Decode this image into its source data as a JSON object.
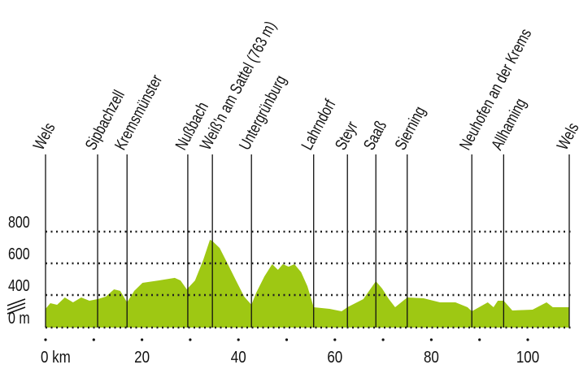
{
  "chart_data": {
    "type": "area",
    "x": [
      0,
      1.0,
      2.4,
      4.0,
      5.7,
      7.4,
      9.1,
      10.8,
      12.5,
      14.2,
      15.5,
      16.9,
      18.4,
      20.1,
      23.4,
      26.8,
      28.0,
      29.3,
      31.0,
      32.7,
      34.1,
      34.7,
      36.1,
      37.8,
      39.5,
      41.2,
      42.7,
      43.7,
      45.4,
      47.0,
      48.2,
      49.2,
      50.4,
      51.6,
      53.0,
      54.3,
      55.6,
      58.9,
      61.4,
      62.6,
      65.9,
      68.5,
      69.8,
      71.2,
      72.5,
      75.0,
      78.4,
      81.8,
      85.0,
      87.5,
      88.4,
      91.7,
      92.9,
      93.8,
      95.0,
      96.8,
      101.0,
      103.9,
      105.2,
      108.6
    ],
    "values": [
      230,
      300,
      280,
      370,
      310,
      370,
      330,
      350,
      380,
      436,
      426,
      310,
      426,
      477,
      492,
      508,
      492,
      436,
      492,
      621,
      749,
      738,
      697,
      595,
      492,
      380,
      280,
      415,
      518,
      595,
      559,
      595,
      579,
      595,
      544,
      456,
      250,
      230,
      200,
      250,
      350,
      487,
      441,
      350,
      250,
      370,
      360,
      310,
      310,
      250,
      200,
      310,
      250,
      330,
      330,
      210,
      220,
      310,
      250,
      250
    ],
    "color": "#9ec813",
    "places": {
      "names": [
        "Wels",
        "Sipbachzell",
        "Kremsmünster",
        "Nußbach",
        "Weiß'n am Sattel (763 m)",
        "Untergrünburg",
        "Lahrndorf",
        "Steyr",
        "Saaß",
        "Sierning",
        "Neuhofen an der Krems",
        "Allhaming",
        "Wels"
      ],
      "km": [
        0,
        10.8,
        16.9,
        29.5,
        34.6,
        42.7,
        55.6,
        62.6,
        68.5,
        75.0,
        88.4,
        95.0,
        108.6
      ]
    },
    "xlim": [
      0,
      108.6
    ],
    "xticks": [
      {
        "value": 0,
        "label": "0 km"
      },
      20,
      40,
      60,
      80,
      100
    ],
    "xminor_ticks": [
      10,
      30,
      50,
      70,
      90
    ],
    "ylim": [
      0,
      800
    ],
    "yticks": [
      {
        "value": 0,
        "label": "0 m"
      },
      400,
      600,
      800
    ],
    "axis_break": true,
    "grid": true
  }
}
